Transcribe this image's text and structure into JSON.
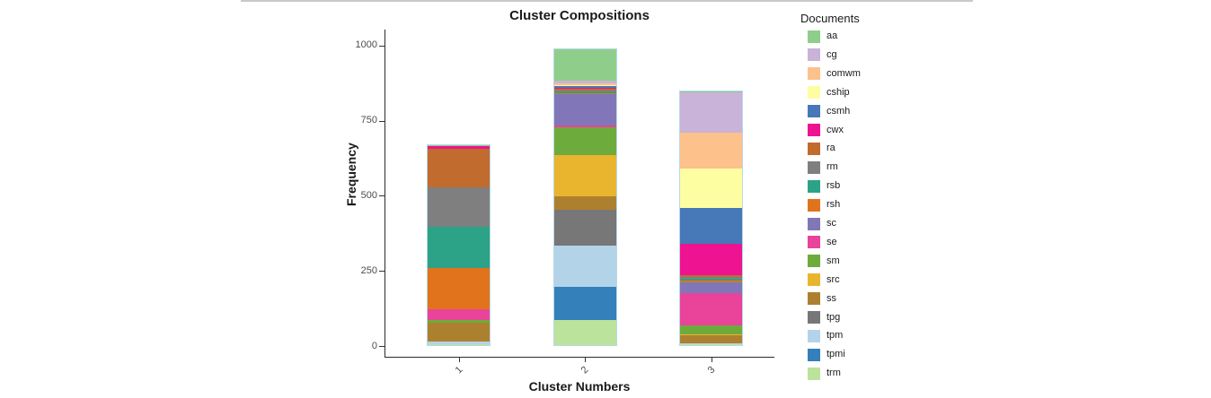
{
  "page": {
    "top_border_color": "#c9c9c9"
  },
  "chart_data": {
    "type": "bar",
    "stacked": true,
    "title": "Cluster Compositions",
    "xlabel": "Cluster Numbers",
    "ylabel": "Frequency",
    "categories": [
      "1",
      "2",
      "3"
    ],
    "ylim": [
      0,
      1000
    ],
    "yticks": [
      0,
      250,
      500,
      750,
      1000
    ],
    "grid": false,
    "legend_title": "Documents",
    "legend_position": "right",
    "stack_order_bottom_to_top": [
      "trm",
      "tpmi",
      "tpm",
      "tpg",
      "ss",
      "src",
      "sm",
      "se",
      "sc",
      "rsh",
      "rsb",
      "rm",
      "ra",
      "cwx",
      "csmh",
      "cship",
      "comwm",
      "cg",
      "aa"
    ],
    "series": [
      {
        "name": "aa",
        "color": "#8fce8a",
        "values": [
          5,
          106,
          3
        ]
      },
      {
        "name": "cg",
        "color": "#c9b3d8",
        "values": [
          0,
          9,
          133
        ]
      },
      {
        "name": "comwm",
        "color": "#fdc18c",
        "values": [
          0,
          6,
          122
        ]
      },
      {
        "name": "cship",
        "color": "#fdfda2",
        "values": [
          0,
          3,
          130
        ]
      },
      {
        "name": "csmh",
        "color": "#4778b7",
        "values": [
          0,
          4,
          121
        ]
      },
      {
        "name": "cwx",
        "color": "#ee1390",
        "values": [
          7,
          5,
          105
        ]
      },
      {
        "name": "ra",
        "color": "#c16b2e",
        "values": [
          131,
          4,
          7
        ]
      },
      {
        "name": "rm",
        "color": "#7f7f7f",
        "values": [
          132,
          5,
          6
        ]
      },
      {
        "name": "rsb",
        "color": "#2ca287",
        "values": [
          137,
          4,
          7
        ]
      },
      {
        "name": "rsh",
        "color": "#e2731d",
        "values": [
          138,
          4,
          6
        ]
      },
      {
        "name": "sc",
        "color": "#8177b8",
        "values": [
          0,
          104,
          34
        ]
      },
      {
        "name": "se",
        "color": "#e9439a",
        "values": [
          37,
          6,
          109
        ]
      },
      {
        "name": "sm",
        "color": "#6dac3c",
        "values": [
          9,
          95,
          30
        ]
      },
      {
        "name": "src",
        "color": "#e9b52e",
        "values": [
          0,
          137,
          4
        ]
      },
      {
        "name": "ss",
        "color": "#ad8030",
        "values": [
          65,
          46,
          25
        ]
      },
      {
        "name": "tpg",
        "color": "#777777",
        "values": [
          0,
          118,
          0
        ]
      },
      {
        "name": "tpm",
        "color": "#b3d4e8",
        "values": [
          7,
          139,
          5
        ]
      },
      {
        "name": "tpmi",
        "color": "#3380ba",
        "values": [
          0,
          110,
          0
        ]
      },
      {
        "name": "trm",
        "color": "#bce39c",
        "values": [
          4,
          85,
          2
        ]
      }
    ]
  }
}
